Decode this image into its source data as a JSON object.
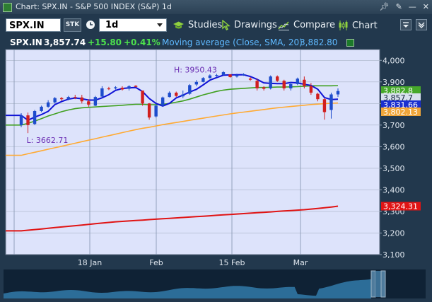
{
  "window": {
    "title": "Chart: SPX.IN - S&P 500 INDEX (S&P) 1d",
    "controls": [
      "pin-icon",
      "pen-icon",
      "minimize-icon",
      "close-icon"
    ]
  },
  "toolbar": {
    "symbol": "SPX.IN",
    "stk_label": "STK",
    "interval": "1d",
    "studies_label": "Studies",
    "drawings_label": "Drawings",
    "compare_label": "Compare",
    "chart_label": "Chart"
  },
  "quote": {
    "symbol": "SPX.IN",
    "last": "3,857.74",
    "change": "+15.80",
    "change_pct": "+0.41%",
    "study_label": "Moving average (Close, SMA, 20)",
    "study_value": "3,882.80"
  },
  "colors": {
    "plot_bg": "#dde3fb",
    "candle_up": "#1d4ccc",
    "candle_down": "#d11f1f",
    "ma_fast": "#0f12d6",
    "ma_20": "#40a020",
    "ma_slow": "#ffaa33",
    "ma_long": "#e01414",
    "up_text": "#4ce04c",
    "study_text": "#5fb9ff"
  },
  "chart_data": {
    "type": "candlestick",
    "ylim": [
      3100,
      4050
    ],
    "yticks": [
      "3,100",
      "3,200",
      "3,300",
      "3,400",
      "3,500",
      "3,600",
      "3,700",
      "3,800",
      "3,900",
      "4,000"
    ],
    "xticks": [
      "18 Jan",
      "Feb",
      "15 Feb",
      "Mar"
    ],
    "high_label": "H: 3950.43",
    "low_label": "L: 3662.71",
    "price_labels": [
      {
        "text": "3,882.8",
        "value": 3882.8,
        "color": "#46a82a"
      },
      {
        "text": "3,857.7",
        "value": 3857.7,
        "color": "#d8e0ee"
      },
      {
        "text": "3,831.66",
        "value": 3831.66,
        "color": "#1a2fd0"
      },
      {
        "text": "3,802.13",
        "value": 3802.13,
        "color": "#f0a63a"
      },
      {
        "text": "3,324.31",
        "value": 3324.31,
        "color": "#e01414"
      }
    ],
    "candles": [
      [
        3700,
        3755,
        3690,
        3745
      ],
      [
        3745,
        3758,
        3662.71,
        3700
      ],
      [
        3705,
        3770,
        3700,
        3765
      ],
      [
        3765,
        3790,
        3760,
        3785
      ],
      [
        3785,
        3815,
        3780,
        3805
      ],
      [
        3805,
        3830,
        3800,
        3825
      ],
      [
        3825,
        3830,
        3812,
        3820
      ],
      [
        3820,
        3835,
        3815,
        3830
      ],
      [
        3830,
        3840,
        3820,
        3828
      ],
      [
        3828,
        3840,
        3800,
        3810
      ],
      [
        3810,
        3820,
        3785,
        3795
      ],
      [
        3790,
        3835,
        3788,
        3830
      ],
      [
        3832,
        3880,
        3825,
        3870
      ],
      [
        3870,
        3877,
        3862,
        3868
      ],
      [
        3870,
        3880,
        3865,
        3875
      ],
      [
        3873,
        3880,
        3860,
        3865
      ],
      [
        3868,
        3885,
        3860,
        3880
      ],
      [
        3882,
        3885,
        3875,
        3877
      ],
      [
        3860,
        3858,
        3790,
        3800
      ],
      [
        3800,
        3802,
        3725,
        3735
      ],
      [
        3740,
        3795,
        3735,
        3790
      ],
      [
        3790,
        3832,
        3785,
        3828
      ],
      [
        3830,
        3856,
        3828,
        3850
      ],
      [
        3850,
        3855,
        3830,
        3835
      ],
      [
        3833,
        3860,
        3825,
        3842
      ],
      [
        3845,
        3890,
        3840,
        3885
      ],
      [
        3888,
        3908,
        3880,
        3900
      ],
      [
        3900,
        3922,
        3898,
        3918
      ],
      [
        3918,
        3935,
        3915,
        3930
      ],
      [
        3930,
        3937,
        3922,
        3932
      ],
      [
        3932,
        3950.43,
        3930,
        3945
      ],
      [
        3935,
        3934,
        3920,
        3922
      ],
      [
        3925,
        3938,
        3920,
        3932
      ],
      [
        3932,
        3940,
        3928,
        3935
      ],
      [
        3915,
        3922,
        3905,
        3910
      ],
      [
        3905,
        3915,
        3860,
        3870
      ],
      [
        3875,
        3880,
        3860,
        3868
      ],
      [
        3870,
        3930,
        3865,
        3925
      ],
      [
        3925,
        3930,
        3900,
        3905
      ],
      [
        3905,
        3910,
        3860,
        3870
      ],
      [
        3870,
        3900,
        3860,
        3890
      ],
      [
        3890,
        3920,
        3885,
        3915
      ],
      [
        3910,
        3925,
        3870,
        3880
      ],
      [
        3880,
        3895,
        3840,
        3850
      ],
      [
        3845,
        3850,
        3810,
        3820
      ],
      [
        3820,
        3825,
        3725,
        3760
      ],
      [
        3770,
        3850,
        3730,
        3842
      ],
      [
        3842,
        3870,
        3830,
        3857.74
      ]
    ],
    "ma20": [
      3700,
      3708,
      3718,
      3730,
      3742,
      3752,
      3762,
      3770,
      3776,
      3780,
      3782,
      3784,
      3786,
      3788,
      3790,
      3792,
      3794,
      3796,
      3796,
      3794,
      3794,
      3796,
      3800,
      3806,
      3812,
      3820,
      3830,
      3840,
      3848,
      3856,
      3862,
      3866,
      3868,
      3870,
      3872,
      3874,
      3874,
      3875,
      3876,
      3876,
      3877,
      3878,
      3880,
      3882,
      3882,
      3882,
      3882,
      3882.8
    ],
    "ma50": [
      3560,
      3567,
      3574,
      3581,
      3588,
      3595,
      3602,
      3609,
      3616,
      3623,
      3630,
      3637,
      3644,
      3651,
      3658,
      3665,
      3672,
      3679,
      3685,
      3690,
      3696,
      3702,
      3707,
      3712,
      3717,
      3722,
      3727,
      3732,
      3737,
      3742,
      3747,
      3752,
      3756,
      3760,
      3764,
      3768,
      3772,
      3776,
      3780,
      3783,
      3786,
      3789,
      3792,
      3795,
      3797,
      3799,
      3801,
      3802.13
    ],
    "ma200": [
      3210,
      3213,
      3216,
      3219,
      3222,
      3225,
      3228,
      3231,
      3234,
      3237,
      3240,
      3243,
      3246,
      3249,
      3252,
      3254,
      3256,
      3258,
      3260,
      3262,
      3264,
      3266,
      3268,
      3270,
      3272,
      3274,
      3276,
      3278,
      3280,
      3282,
      3284,
      3286,
      3288,
      3290,
      3292,
      3294,
      3296,
      3298,
      3300,
      3302,
      3304,
      3306,
      3308,
      3311,
      3314,
      3317,
      3320,
      3324.31
    ]
  }
}
